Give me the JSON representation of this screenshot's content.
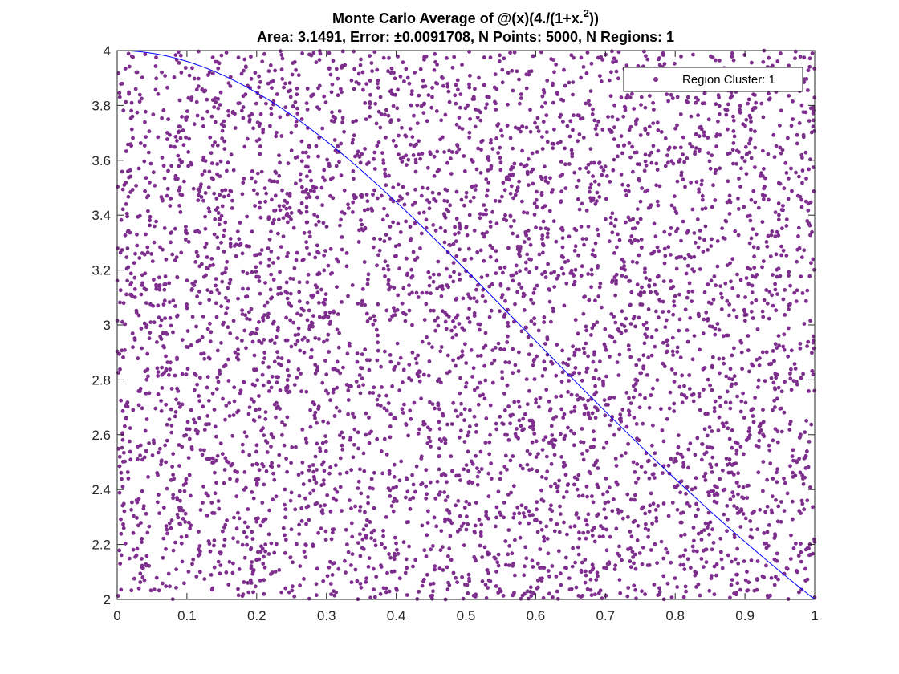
{
  "chart_data": {
    "type": "scatter",
    "title": "Monte Carlo Average of @(x)(4./(1+x.^2))",
    "title_parts": [
      "Monte Carlo Average of @(x)(4./(1+x.",
      "2",
      "))"
    ],
    "subtitle": "Area: 3.1491, Error: ±0.0091708, N Points: 5000, N Regions: 1",
    "xlim": [
      0,
      1
    ],
    "ylim": [
      2,
      4
    ],
    "x_ticks": [
      0,
      0.1,
      0.2,
      0.3,
      0.4,
      0.5,
      0.6,
      0.7,
      0.8,
      0.9,
      1
    ],
    "x_tick_labels": [
      "0",
      "0.1",
      "0.2",
      "0.3",
      "0.4",
      "0.5",
      "0.6",
      "0.7",
      "0.8",
      "0.9",
      "1"
    ],
    "y_ticks": [
      2,
      2.2,
      2.4,
      2.6,
      2.8,
      3,
      3.2,
      3.4,
      3.6,
      3.8,
      4
    ],
    "y_tick_labels": [
      "2",
      "2.2",
      "2.4",
      "2.6",
      "2.8",
      "3",
      "3.2",
      "3.4",
      "3.6",
      "3.8",
      "4"
    ],
    "grid": false,
    "legend_position": "top-right",
    "series": [
      {
        "name": "Region Cluster: 1",
        "kind": "points",
        "color": "#7E2F8E",
        "count": 5000,
        "distribution": "uniform",
        "x_range": [
          0,
          1
        ],
        "y_range": [
          2,
          4
        ]
      },
      {
        "kind": "line",
        "color": "#0000FF",
        "function": "4/(1+x^2)",
        "x_range": [
          0,
          1
        ]
      }
    ]
  }
}
